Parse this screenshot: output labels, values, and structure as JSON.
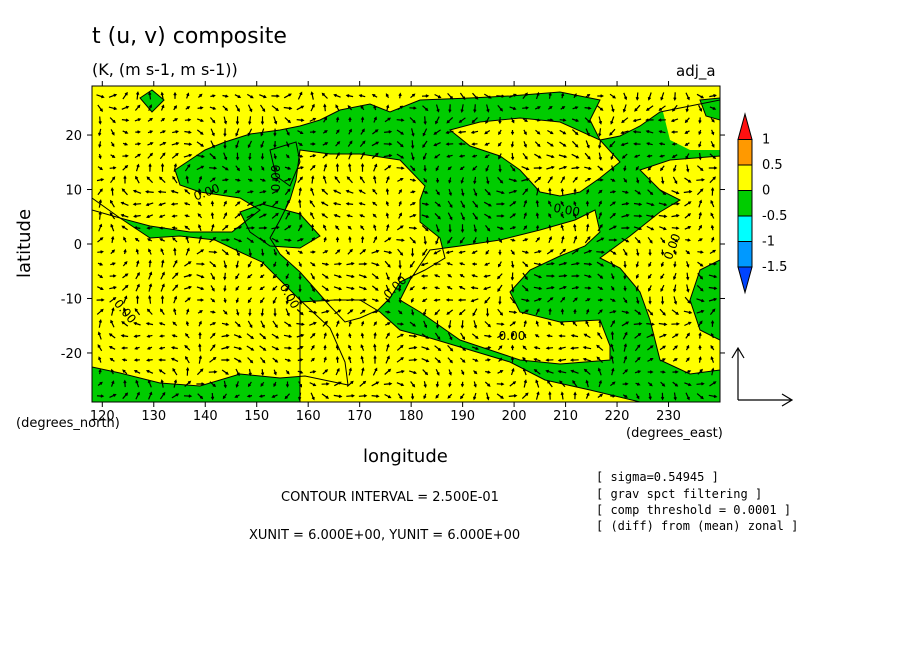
{
  "chart_data": {
    "type": "heatmap",
    "title": "t (u, v) composite",
    "subtitle": "(K, (m s-1, m s-1))",
    "tag": "adj_a",
    "xlabel": "longitude",
    "ylabel": "latitude",
    "x_unit_label": "(degrees_east)",
    "y_unit_label": "(degrees_north)",
    "xlim": [
      118,
      240
    ],
    "ylim": [
      -29,
      29
    ],
    "x_ticks": [
      120,
      130,
      140,
      150,
      160,
      170,
      180,
      190,
      200,
      210,
      220,
      230
    ],
    "y_ticks": [
      20,
      10,
      0,
      -10,
      -20
    ],
    "contour_label": "0.00",
    "contour_interval": "CONTOUR INTERVAL = 2.500E-01",
    "vector_units": "XUNIT = 6.000E+00, YUNIT = 6.000E+00",
    "notes": [
      "[ sigma=0.54945 ]",
      "[ grav spct filtering ]",
      "[ comp threshold = 0.0001 ]",
      "[ (diff) from (mean) zonal ]"
    ],
    "colorbar": {
      "labels": [
        "1",
        "0.5",
        "0",
        "-0.5",
        "-1",
        "-1.5"
      ],
      "bins": [
        {
          "range": "above 1",
          "color": "#ff1010"
        },
        {
          "range": "0.5 to 1",
          "color": "#ff9900"
        },
        {
          "range": "0 to 0.5",
          "color": "#ffff00"
        },
        {
          "range": "-0.5 to 0",
          "color": "#00cc00"
        },
        {
          "range": "-1 to -0.5",
          "color": "#00ffff"
        },
        {
          "range": "-1.5 to -1",
          "color": "#0099ff"
        },
        {
          "range": "below -1.5",
          "color": "#0044ff"
        }
      ]
    },
    "field_colors": {
      "positive": "#ffff00",
      "negative": "#00cc00"
    }
  }
}
